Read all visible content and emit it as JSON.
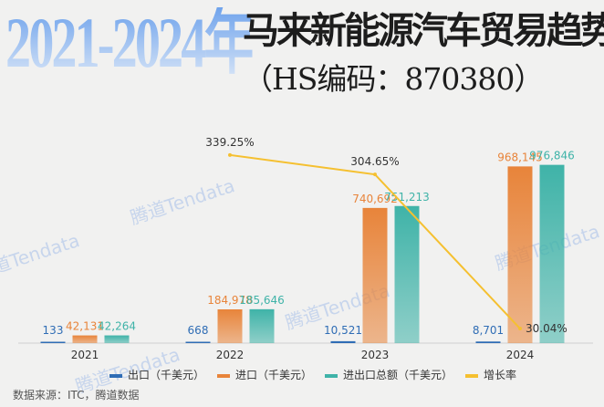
{
  "title": {
    "years": "2021-2024年",
    "main": "马来新能源汽车贸易趋势",
    "sub": "（HS编码：870380）"
  },
  "watermark": "腾道Tendata",
  "source": "数据来源：ITC，腾道数据",
  "chart_data": {
    "type": "bar",
    "categories": [
      "2021",
      "2022",
      "2023",
      "2024"
    ],
    "series": [
      {
        "name": "出口（千美元）",
        "color": "#2f6db5",
        "values": [
          133,
          668,
          10521,
          8701
        ],
        "labels": [
          "133",
          "668",
          "10,521",
          "8,701"
        ]
      },
      {
        "name": "进口（千美元）",
        "color": "#e8843a",
        "values": [
          42131,
          184978,
          740692,
          968145
        ],
        "labels": [
          "42,131",
          "184,978",
          "740,692",
          "968,145"
        ]
      },
      {
        "name": "进出口总额（千美元）",
        "color": "#3fb3a8",
        "values": [
          42264,
          185646,
          751213,
          976846
        ],
        "labels": [
          "42,264",
          "185,646",
          "751,213",
          "976,846"
        ]
      },
      {
        "name": "增长率",
        "type": "line",
        "color": "#f5c030",
        "values": [
          null,
          339.25,
          304.65,
          30.04
        ],
        "labels": [
          "",
          "339.25%",
          "304.65%",
          "30.04%"
        ]
      }
    ],
    "ylim": [
      0,
      1000000
    ],
    "y2lim": [
      0,
      615
    ],
    "legend": "bottom",
    "grid": false
  }
}
